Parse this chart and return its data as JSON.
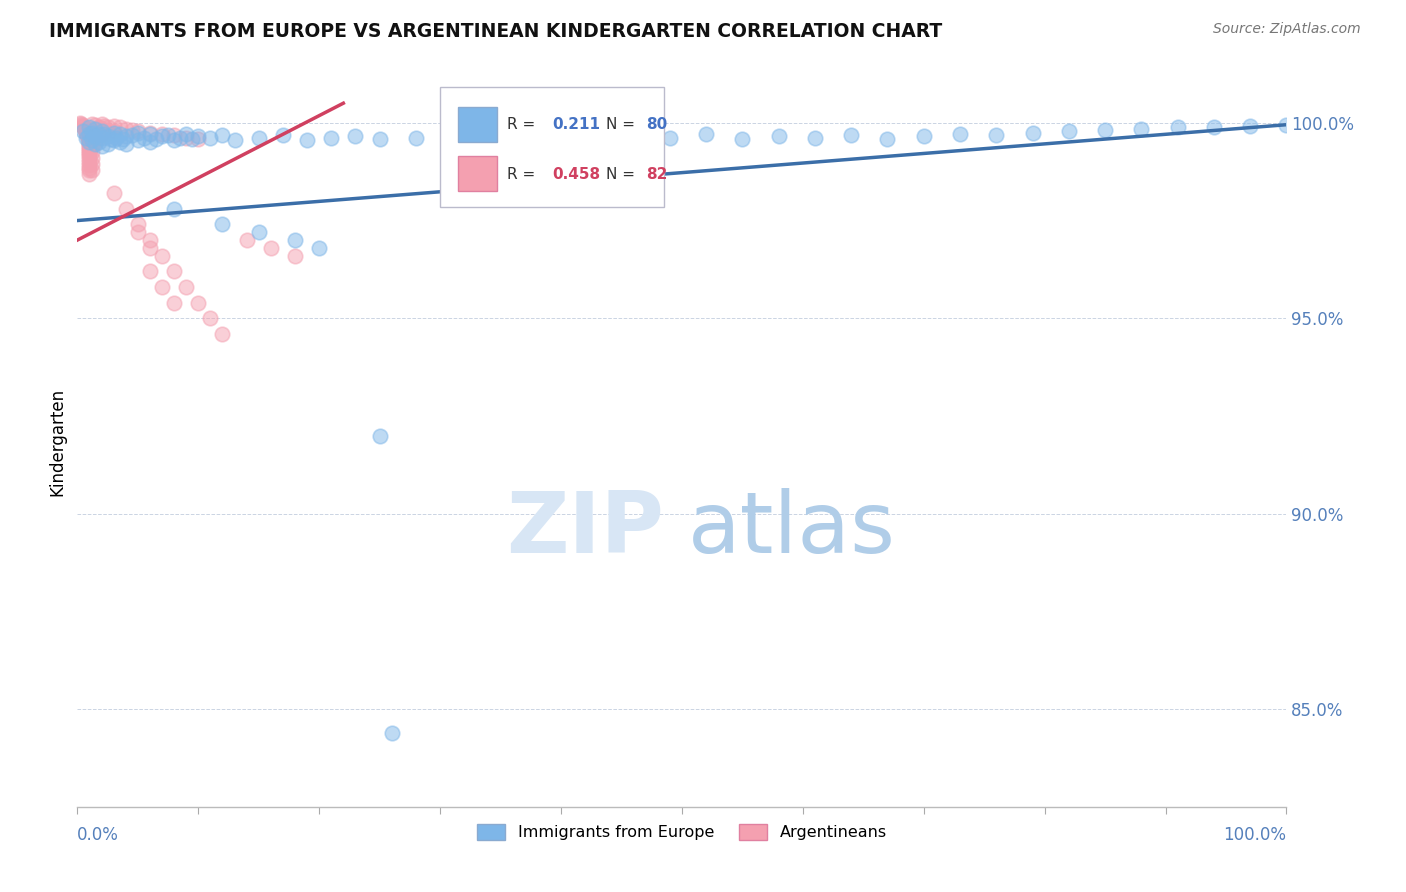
{
  "title": "IMMIGRANTS FROM EUROPE VS ARGENTINEAN KINDERGARTEN CORRELATION CHART",
  "source": "Source: ZipAtlas.com",
  "ylabel": "Kindergarten",
  "blue_R": 0.211,
  "blue_N": 80,
  "pink_R": 0.458,
  "pink_N": 82,
  "blue_color": "#7EB6E8",
  "pink_color": "#F4A0B0",
  "blue_line_color": "#3B6EA8",
  "pink_line_color": "#D04060",
  "xlim": [
    0.0,
    1.0
  ],
  "ylim": [
    0.825,
    1.012
  ],
  "yticks": [
    0.85,
    0.9,
    0.95,
    1.0
  ],
  "ytick_labels": [
    "85.0%",
    "90.0%",
    "95.0%",
    "100.0%"
  ],
  "blue_scatter": [
    [
      0.005,
      0.998
    ],
    [
      0.007,
      0.996
    ],
    [
      0.01,
      0.999
    ],
    [
      0.01,
      0.997
    ],
    [
      0.01,
      0.995
    ],
    [
      0.012,
      0.9975
    ],
    [
      0.012,
      0.9955
    ],
    [
      0.015,
      0.9985
    ],
    [
      0.015,
      0.9965
    ],
    [
      0.015,
      0.9945
    ],
    [
      0.018,
      0.997
    ],
    [
      0.018,
      0.995
    ],
    [
      0.02,
      0.998
    ],
    [
      0.02,
      0.996
    ],
    [
      0.02,
      0.994
    ],
    [
      0.022,
      0.9972
    ],
    [
      0.025,
      0.9965
    ],
    [
      0.025,
      0.9945
    ],
    [
      0.028,
      0.9958
    ],
    [
      0.03,
      0.9975
    ],
    [
      0.03,
      0.9955
    ],
    [
      0.032,
      0.9962
    ],
    [
      0.035,
      0.997
    ],
    [
      0.035,
      0.995
    ],
    [
      0.038,
      0.9958
    ],
    [
      0.04,
      0.9965
    ],
    [
      0.04,
      0.9945
    ],
    [
      0.045,
      0.9968
    ],
    [
      0.05,
      0.9975
    ],
    [
      0.05,
      0.9955
    ],
    [
      0.055,
      0.9962
    ],
    [
      0.06,
      0.997
    ],
    [
      0.06,
      0.995
    ],
    [
      0.065,
      0.9958
    ],
    [
      0.07,
      0.9965
    ],
    [
      0.075,
      0.9968
    ],
    [
      0.08,
      0.9955
    ],
    [
      0.085,
      0.9962
    ],
    [
      0.09,
      0.997
    ],
    [
      0.095,
      0.9958
    ],
    [
      0.1,
      0.9965
    ],
    [
      0.11,
      0.996
    ],
    [
      0.12,
      0.9968
    ],
    [
      0.13,
      0.9955
    ],
    [
      0.15,
      0.9962
    ],
    [
      0.17,
      0.9968
    ],
    [
      0.19,
      0.9955
    ],
    [
      0.21,
      0.996
    ],
    [
      0.23,
      0.9965
    ],
    [
      0.25,
      0.9958
    ],
    [
      0.28,
      0.9962
    ],
    [
      0.31,
      0.9968
    ],
    [
      0.34,
      0.9955
    ],
    [
      0.37,
      0.996
    ],
    [
      0.4,
      0.9965
    ],
    [
      0.43,
      0.9958
    ],
    [
      0.46,
      0.9968
    ],
    [
      0.49,
      0.9962
    ],
    [
      0.52,
      0.997
    ],
    [
      0.55,
      0.9958
    ],
    [
      0.58,
      0.9965
    ],
    [
      0.61,
      0.996
    ],
    [
      0.64,
      0.9968
    ],
    [
      0.67,
      0.9958
    ],
    [
      0.7,
      0.9965
    ],
    [
      0.73,
      0.9972
    ],
    [
      0.76,
      0.9968
    ],
    [
      0.79,
      0.9975
    ],
    [
      0.82,
      0.9978
    ],
    [
      0.85,
      0.9982
    ],
    [
      0.88,
      0.9985
    ],
    [
      0.91,
      0.9988
    ],
    [
      0.94,
      0.999
    ],
    [
      0.97,
      0.9992
    ],
    [
      1.0,
      0.9995
    ],
    [
      0.08,
      0.978
    ],
    [
      0.12,
      0.974
    ],
    [
      0.15,
      0.972
    ],
    [
      0.18,
      0.97
    ],
    [
      0.2,
      0.968
    ],
    [
      0.25,
      0.92
    ],
    [
      0.26,
      0.844
    ]
  ],
  "pink_scatter": [
    [
      0.002,
      1.0
    ],
    [
      0.003,
      0.9998
    ],
    [
      0.004,
      0.9995
    ],
    [
      0.005,
      0.9992
    ],
    [
      0.005,
      0.9988
    ],
    [
      0.006,
      0.9985
    ],
    [
      0.006,
      0.9982
    ],
    [
      0.007,
      0.9978
    ],
    [
      0.007,
      0.9975
    ],
    [
      0.008,
      0.9972
    ],
    [
      0.008,
      0.9968
    ],
    [
      0.009,
      0.9965
    ],
    [
      0.009,
      0.9962
    ],
    [
      0.01,
      0.9958
    ],
    [
      0.01,
      0.9955
    ],
    [
      0.01,
      0.9952
    ],
    [
      0.01,
      0.9948
    ],
    [
      0.01,
      0.9945
    ],
    [
      0.01,
      0.994
    ],
    [
      0.01,
      0.9935
    ],
    [
      0.01,
      0.993
    ],
    [
      0.01,
      0.9925
    ],
    [
      0.01,
      0.992
    ],
    [
      0.01,
      0.9915
    ],
    [
      0.01,
      0.9908
    ],
    [
      0.01,
      0.99
    ],
    [
      0.01,
      0.9892
    ],
    [
      0.01,
      0.9885
    ],
    [
      0.01,
      0.9878
    ],
    [
      0.01,
      0.987
    ],
    [
      0.012,
      0.9998
    ],
    [
      0.012,
      0.9985
    ],
    [
      0.012,
      0.997
    ],
    [
      0.012,
      0.9955
    ],
    [
      0.012,
      0.994
    ],
    [
      0.012,
      0.9925
    ],
    [
      0.012,
      0.991
    ],
    [
      0.012,
      0.9895
    ],
    [
      0.012,
      0.9878
    ],
    [
      0.015,
      0.9995
    ],
    [
      0.015,
      0.998
    ],
    [
      0.015,
      0.9965
    ],
    [
      0.015,
      0.995
    ],
    [
      0.018,
      0.999
    ],
    [
      0.018,
      0.9975
    ],
    [
      0.018,
      0.996
    ],
    [
      0.02,
      0.9998
    ],
    [
      0.02,
      0.9985
    ],
    [
      0.02,
      0.997
    ],
    [
      0.022,
      0.9992
    ],
    [
      0.022,
      0.9978
    ],
    [
      0.025,
      0.9988
    ],
    [
      0.025,
      0.9975
    ],
    [
      0.03,
      0.9992
    ],
    [
      0.03,
      0.9978
    ],
    [
      0.035,
      0.9988
    ],
    [
      0.04,
      0.9985
    ],
    [
      0.045,
      0.9982
    ],
    [
      0.05,
      0.9978
    ],
    [
      0.06,
      0.9975
    ],
    [
      0.07,
      0.9972
    ],
    [
      0.08,
      0.9968
    ],
    [
      0.09,
      0.9962
    ],
    [
      0.1,
      0.9958
    ],
    [
      0.03,
      0.982
    ],
    [
      0.04,
      0.978
    ],
    [
      0.05,
      0.974
    ],
    [
      0.06,
      0.97
    ],
    [
      0.07,
      0.966
    ],
    [
      0.08,
      0.962
    ],
    [
      0.09,
      0.958
    ],
    [
      0.1,
      0.954
    ],
    [
      0.11,
      0.95
    ],
    [
      0.12,
      0.946
    ],
    [
      0.05,
      0.972
    ],
    [
      0.06,
      0.968
    ],
    [
      0.14,
      0.97
    ],
    [
      0.16,
      0.968
    ],
    [
      0.18,
      0.966
    ],
    [
      0.06,
      0.962
    ],
    [
      0.07,
      0.958
    ],
    [
      0.08,
      0.954
    ]
  ],
  "blue_trendline": [
    [
      0.0,
      0.975
    ],
    [
      1.0,
      0.9995
    ]
  ],
  "pink_trendline": [
    [
      0.0,
      0.97
    ],
    [
      0.22,
      1.005
    ]
  ]
}
